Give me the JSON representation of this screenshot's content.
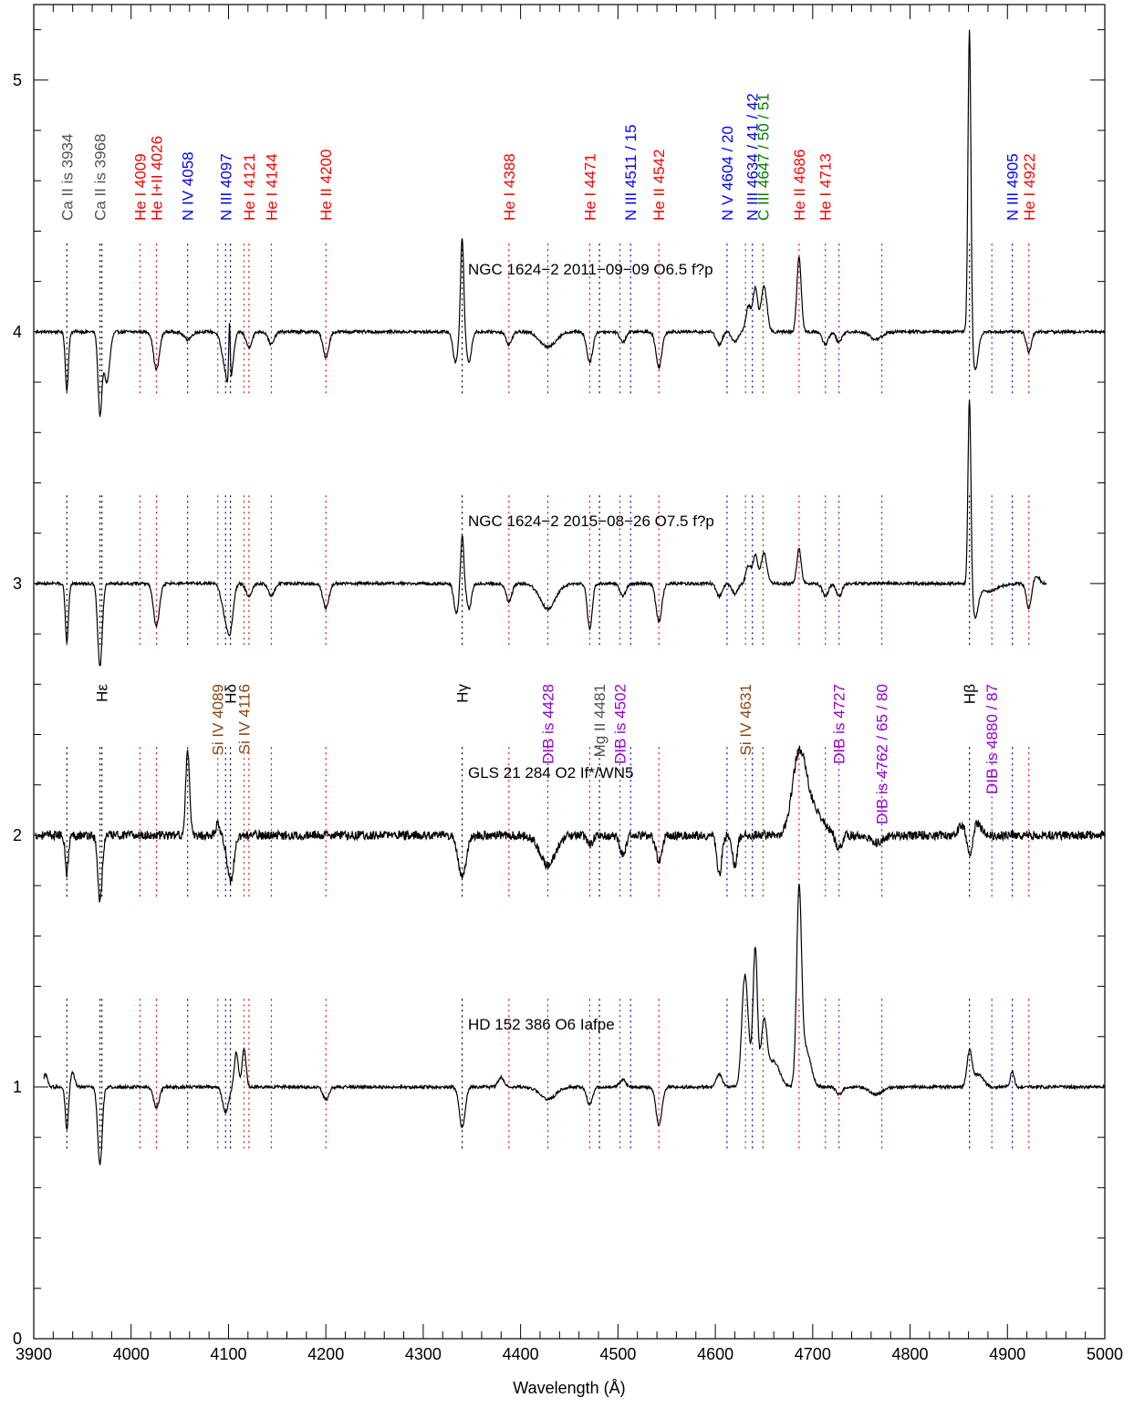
{
  "chart_data": {
    "type": "line",
    "xlabel": "Wavelength (Å)",
    "ylabel": "",
    "xlim": [
      3900,
      5000
    ],
    "ylim": [
      0,
      5.3
    ],
    "x_ticks": [
      3900,
      4000,
      4100,
      4200,
      4300,
      4400,
      4500,
      4600,
      4700,
      4800,
      4900,
      5000
    ],
    "y_ticks": [
      0,
      1,
      2,
      3,
      4,
      5
    ],
    "colors": {
      "red": "#ff0000",
      "blue": "#0000ff",
      "green": "#008000",
      "gray": "#505050",
      "brown": "#8b4513",
      "purple": "#9400d3",
      "black": "#000000"
    },
    "series": [
      {
        "name": "NGC 1624−2 2011−09−09   O6.5 f?p",
        "offset": 4,
        "x_end": 5000,
        "features": [
          [
            3934,
            -0.23,
            1.6
          ],
          [
            3968,
            -0.32,
            2.0
          ],
          [
            3975,
            -0.2,
            3
          ],
          [
            4026,
            -0.15,
            3
          ],
          [
            4058,
            -0.03,
            4
          ],
          [
            4097,
            -0.13,
            4
          ],
          [
            4102,
            -0.15,
            3
          ],
          [
            4101,
            0.25,
            0.8
          ],
          [
            4121,
            -0.06,
            3
          ],
          [
            4144,
            -0.05,
            3
          ],
          [
            4200,
            -0.1,
            3
          ],
          [
            4340,
            0.38,
            1.6
          ],
          [
            4333,
            -0.12,
            2.5
          ],
          [
            4347,
            -0.12,
            2.5
          ],
          [
            4388,
            -0.05,
            3
          ],
          [
            4428,
            -0.06,
            8
          ],
          [
            4471,
            -0.12,
            3
          ],
          [
            4505,
            -0.04,
            3
          ],
          [
            4542,
            -0.14,
            3
          ],
          [
            4604,
            -0.05,
            3
          ],
          [
            4620,
            -0.04,
            3
          ],
          [
            4634,
            0.1,
            2.5
          ],
          [
            4641,
            0.17,
            2.5
          ],
          [
            4650,
            0.18,
            3
          ],
          [
            4686,
            0.3,
            2.2
          ],
          [
            4713,
            -0.05,
            3
          ],
          [
            4727,
            -0.04,
            3
          ],
          [
            4765,
            -0.03,
            6
          ],
          [
            4861,
            1.22,
            1.5
          ],
          [
            4867,
            -0.15,
            3
          ],
          [
            4922,
            -0.08,
            2.5
          ]
        ]
      },
      {
        "name": "NGC 1624−2 2015−08−26   O7.5 f?p",
        "offset": 3,
        "x_end": 4940,
        "features": [
          [
            3934,
            -0.23,
            1.6
          ],
          [
            3968,
            -0.33,
            2.3
          ],
          [
            4026,
            -0.17,
            3
          ],
          [
            4097,
            -0.12,
            4
          ],
          [
            4102,
            -0.14,
            3
          ],
          [
            4121,
            -0.05,
            3
          ],
          [
            4144,
            -0.05,
            3
          ],
          [
            4200,
            -0.1,
            3
          ],
          [
            4340,
            0.2,
            1.6
          ],
          [
            4334,
            -0.12,
            2.5
          ],
          [
            4347,
            -0.1,
            2.5
          ],
          [
            4388,
            -0.07,
            3
          ],
          [
            4428,
            -0.1,
            8
          ],
          [
            4471,
            -0.18,
            2.5
          ],
          [
            4505,
            -0.05,
            3
          ],
          [
            4542,
            -0.15,
            3
          ],
          [
            4604,
            -0.05,
            3
          ],
          [
            4620,
            -0.04,
            3
          ],
          [
            4634,
            0.07,
            2.5
          ],
          [
            4641,
            0.11,
            2.5
          ],
          [
            4650,
            0.12,
            3
          ],
          [
            4686,
            0.14,
            2.2
          ],
          [
            4713,
            -0.05,
            3
          ],
          [
            4727,
            -0.05,
            3
          ],
          [
            4861,
            0.75,
            1.5
          ],
          [
            4867,
            -0.12,
            3
          ],
          [
            4880,
            -0.03,
            10
          ],
          [
            4922,
            -0.1,
            2.5
          ],
          [
            4930,
            0.03,
            3
          ]
        ]
      },
      {
        "name": "GLS 21 284   O2 If*/WN5",
        "offset": 2,
        "x_end": 5000,
        "features": [
          [
            3934,
            -0.15,
            1.6
          ],
          [
            3968,
            -0.26,
            2.3
          ],
          [
            4058,
            0.33,
            2.0
          ],
          [
            4089,
            0.05,
            2
          ],
          [
            4102,
            -0.18,
            3.5
          ],
          [
            4340,
            -0.17,
            4
          ],
          [
            4428,
            -0.12,
            8
          ],
          [
            4471,
            -0.04,
            3
          ],
          [
            4505,
            -0.08,
            3
          ],
          [
            4542,
            -0.1,
            3
          ],
          [
            4604,
            -0.16,
            2.5
          ],
          [
            4620,
            -0.12,
            2.5
          ],
          [
            4686,
            0.3,
            7
          ],
          [
            4700,
            0.1,
            10
          ],
          [
            4727,
            -0.06,
            3
          ],
          [
            4765,
            -0.03,
            6
          ],
          [
            4855,
            0.05,
            4
          ],
          [
            4861,
            -0.12,
            3
          ],
          [
            4868,
            0.05,
            5
          ]
        ]
      },
      {
        "name": "HD 152 386   O6 Iafpe",
        "offset": 1,
        "x_start": 3910,
        "x_end": 5000,
        "features": [
          [
            3912,
            0.05,
            2
          ],
          [
            3934,
            -0.17,
            1.6
          ],
          [
            3940,
            0.06,
            2
          ],
          [
            3968,
            -0.31,
            2.3
          ],
          [
            4026,
            -0.08,
            3
          ],
          [
            4097,
            -0.1,
            3
          ],
          [
            4108,
            0.14,
            2
          ],
          [
            4116,
            0.15,
            2
          ],
          [
            4200,
            -0.05,
            3
          ],
          [
            4340,
            -0.16,
            3
          ],
          [
            4380,
            0.04,
            3
          ],
          [
            4428,
            -0.05,
            8
          ],
          [
            4471,
            -0.07,
            3
          ],
          [
            4505,
            0.03,
            3
          ],
          [
            4542,
            -0.15,
            3
          ],
          [
            4604,
            0.05,
            3
          ],
          [
            4630,
            0.4,
            3
          ],
          [
            4634,
            0.1,
            3
          ],
          [
            4641,
            0.55,
            2.2
          ],
          [
            4650,
            0.25,
            3
          ],
          [
            4660,
            0.1,
            6
          ],
          [
            4686,
            0.75,
            2.5
          ],
          [
            4693,
            0.15,
            5
          ],
          [
            4727,
            -0.03,
            3
          ],
          [
            4765,
            -0.03,
            6
          ],
          [
            4861,
            0.14,
            2.5
          ],
          [
            4870,
            0.05,
            5
          ],
          [
            4905,
            0.06,
            2
          ]
        ]
      }
    ],
    "top_lines": [
      {
        "label": "Ca II is 3934",
        "x": 3934,
        "color": "gray"
      },
      {
        "label": "Ca II is 3968",
        "x": 3968,
        "color": "gray"
      },
      {
        "label": "He I 4009",
        "x": 4009,
        "color": "red"
      },
      {
        "label": "He I+II 4026",
        "x": 4026,
        "color": "red"
      },
      {
        "label": "N IV 4058",
        "x": 4058,
        "color": "blue"
      },
      {
        "label": "N III 4097",
        "x": 4097,
        "color": "blue"
      },
      {
        "label": "He I 4121",
        "x": 4121,
        "color": "red"
      },
      {
        "label": "He I 4144",
        "x": 4144,
        "color": "red"
      },
      {
        "label": "He II 4200",
        "x": 4200,
        "color": "red"
      },
      {
        "label": "He I 4388",
        "x": 4388,
        "color": "red"
      },
      {
        "label": "He I 4471",
        "x": 4471,
        "color": "red"
      },
      {
        "label": "N III 4511 / 15",
        "x": 4513,
        "color": "blue"
      },
      {
        "label": "He II 4542",
        "x": 4542,
        "color": "red"
      },
      {
        "label": "N V 4604 / 20",
        "x": 4612,
        "color": "blue"
      },
      {
        "label": "N III 4634 / 41 / 42",
        "x": 4638,
        "color": "blue"
      },
      {
        "label": "C III 4647 / 50 / 51",
        "x": 4649,
        "color": "green"
      },
      {
        "label": "He II 4686",
        "x": 4686,
        "color": "red"
      },
      {
        "label": "He I 4713",
        "x": 4713,
        "color": "red"
      },
      {
        "label": "N III 4905",
        "x": 4905,
        "color": "blue"
      },
      {
        "label": "He I 4922",
        "x": 4922,
        "color": "red"
      }
    ],
    "bottom_lines": [
      {
        "label": "Hε",
        "x": 3970,
        "color": "black"
      },
      {
        "label": "Si IV 4089",
        "x": 4089,
        "color": "brown"
      },
      {
        "label": "Hδ",
        "x": 4102,
        "color": "black"
      },
      {
        "label": "Si IV 4116",
        "x": 4116,
        "color": "brown"
      },
      {
        "label": "Hγ",
        "x": 4340,
        "color": "black"
      },
      {
        "label": "DIB is 4428",
        "x": 4428,
        "color": "purple"
      },
      {
        "label": "Mg II 4481",
        "x": 4481,
        "color": "gray"
      },
      {
        "label": "DIB is 4502",
        "x": 4502,
        "color": "purple"
      },
      {
        "label": "Si IV 4631",
        "x": 4631,
        "color": "brown"
      },
      {
        "label": "DIB is 4727",
        "x": 4727,
        "color": "purple"
      },
      {
        "label": "DIB is 4762 / 65 / 80",
        "x": 4771,
        "color": "purple"
      },
      {
        "label": "Hβ",
        "x": 4861,
        "color": "black"
      },
      {
        "label": "DIB is 4880 / 87",
        "x": 4884,
        "color": "purple"
      }
    ]
  }
}
